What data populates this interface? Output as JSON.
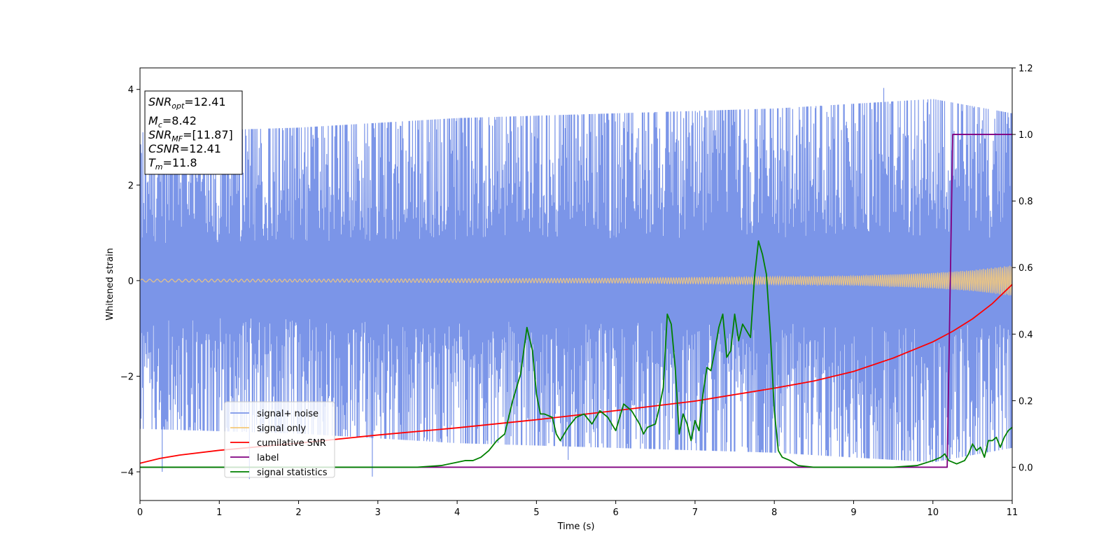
{
  "chart_data": {
    "type": "line",
    "xlabel": "Time (s)",
    "ylabel": "Whitened strain",
    "xlim": [
      0,
      11
    ],
    "ylim": [
      -4.6,
      4.45
    ],
    "y2lim": [
      -0.1,
      1.2
    ],
    "x_ticks": [
      0,
      1,
      2,
      3,
      4,
      5,
      6,
      7,
      8,
      9,
      10,
      11
    ],
    "y_ticks": [
      -4,
      -2,
      0,
      2,
      4
    ],
    "y2_ticks": [
      "0.0",
      "0.2",
      "0.4",
      "0.6",
      "0.8",
      "1.0",
      "1.2"
    ],
    "grid": false,
    "legend_position": "lower-left",
    "annotation": {
      "lines": [
        {
          "name": "SNR",
          "sub": "opt",
          "value": "=12.41"
        },
        {
          "name": "M",
          "sub": "c",
          "value": "=8.42"
        },
        {
          "name": "SNR",
          "sub": "MF",
          "value": "=[11.87]"
        },
        {
          "name": "CSNR",
          "sub": "",
          "value": "=12.41"
        },
        {
          "name": "T",
          "sub": "m",
          "value": "=11.8"
        }
      ]
    },
    "series": [
      {
        "name": "signal+ noise",
        "color": "#7b95e8",
        "axis": "left",
        "description_kind": "noise",
        "amplitude_envelope": {
          "x": [
            0,
            2,
            4,
            6,
            8,
            10,
            11
          ],
          "max": [
            3.1,
            3.2,
            3.4,
            3.5,
            3.6,
            3.8,
            3.5
          ]
        },
        "sample_peaks": {
          "x": [
            0.28,
            1.38,
            2.93,
            9.38,
            5.4
          ],
          "y": [
            -4.0,
            -4.15,
            -4.1,
            4.03,
            -3.75
          ]
        }
      },
      {
        "name": "signal only",
        "color": "#f5c97a",
        "axis": "left",
        "description_kind": "chirp",
        "envelope": {
          "x": [
            0,
            2,
            4,
            6,
            8,
            9,
            10,
            10.5,
            11
          ],
          "amp": [
            0.03,
            0.03,
            0.04,
            0.05,
            0.08,
            0.1,
            0.16,
            0.22,
            0.32
          ]
        }
      },
      {
        "name": "cumilative SNR",
        "color": "#ff0000",
        "axis": "left",
        "x": [
          0,
          0.25,
          0.5,
          1,
          2,
          3,
          4,
          5,
          6,
          7,
          8,
          8.5,
          9,
          9.5,
          10,
          10.25,
          10.5,
          10.75,
          11
        ],
        "y": [
          -3.82,
          -3.72,
          -3.65,
          -3.55,
          -3.4,
          -3.23,
          -3.08,
          -2.91,
          -2.72,
          -2.52,
          -2.25,
          -2.1,
          -1.9,
          -1.62,
          -1.28,
          -1.06,
          -0.8,
          -0.48,
          -0.08
        ]
      },
      {
        "name": "label",
        "color": "#800080",
        "axis": "right",
        "x": [
          0,
          10.18,
          10.25,
          11
        ],
        "y": [
          0.0,
          0.0,
          1.0,
          1.0
        ]
      },
      {
        "name": "signal statistics",
        "color": "#008000",
        "axis": "right",
        "x": [
          0,
          0.5,
          1,
          2,
          3,
          3.5,
          3.8,
          4.0,
          4.1,
          4.2,
          4.3,
          4.4,
          4.5,
          4.6,
          4.7,
          4.8,
          4.88,
          4.95,
          5.0,
          5.05,
          5.1,
          5.2,
          5.25,
          5.3,
          5.4,
          5.5,
          5.6,
          5.7,
          5.8,
          5.9,
          6.0,
          6.1,
          6.2,
          6.3,
          6.35,
          6.4,
          6.5,
          6.55,
          6.6,
          6.65,
          6.7,
          6.75,
          6.8,
          6.85,
          6.9,
          6.95,
          7.0,
          7.05,
          7.1,
          7.15,
          7.2,
          7.25,
          7.3,
          7.35,
          7.4,
          7.45,
          7.5,
          7.55,
          7.6,
          7.65,
          7.7,
          7.75,
          7.8,
          7.85,
          7.9,
          7.95,
          8.0,
          8.05,
          8.1,
          8.2,
          8.3,
          8.5,
          9.0,
          9.5,
          9.8,
          10.0,
          10.1,
          10.15,
          10.2,
          10.3,
          10.4,
          10.45,
          10.5,
          10.55,
          10.6,
          10.65,
          10.7,
          10.75,
          10.8,
          10.85,
          10.9,
          10.95,
          11.0
        ],
        "y": [
          0.0,
          0.0,
          0.0,
          0.0,
          0.0,
          0.0,
          0.005,
          0.015,
          0.02,
          0.02,
          0.03,
          0.05,
          0.08,
          0.1,
          0.2,
          0.28,
          0.42,
          0.35,
          0.22,
          0.16,
          0.16,
          0.15,
          0.1,
          0.08,
          0.12,
          0.15,
          0.16,
          0.13,
          0.17,
          0.15,
          0.11,
          0.19,
          0.17,
          0.13,
          0.1,
          0.12,
          0.13,
          0.18,
          0.24,
          0.46,
          0.43,
          0.3,
          0.1,
          0.16,
          0.13,
          0.08,
          0.14,
          0.11,
          0.22,
          0.3,
          0.29,
          0.35,
          0.42,
          0.46,
          0.33,
          0.35,
          0.46,
          0.38,
          0.43,
          0.41,
          0.39,
          0.57,
          0.68,
          0.64,
          0.58,
          0.4,
          0.17,
          0.05,
          0.03,
          0.02,
          0.005,
          0.0,
          0.0,
          0.0,
          0.005,
          0.02,
          0.03,
          0.04,
          0.02,
          0.01,
          0.02,
          0.04,
          0.07,
          0.05,
          0.06,
          0.03,
          0.08,
          0.08,
          0.09,
          0.06,
          0.09,
          0.11,
          0.12
        ]
      }
    ]
  }
}
